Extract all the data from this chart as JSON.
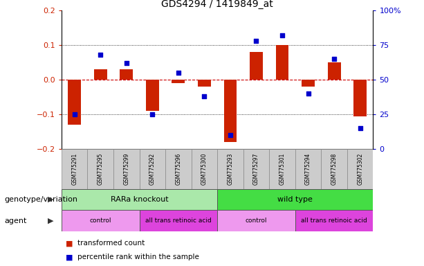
{
  "title": "GDS4294 / 1419849_at",
  "samples": [
    "GSM775291",
    "GSM775295",
    "GSM775299",
    "GSM775292",
    "GSM775296",
    "GSM775300",
    "GSM775293",
    "GSM775297",
    "GSM775301",
    "GSM775294",
    "GSM775298",
    "GSM775302"
  ],
  "bar_values": [
    -0.13,
    0.03,
    0.03,
    -0.09,
    -0.01,
    -0.02,
    -0.18,
    0.08,
    0.1,
    -0.02,
    0.05,
    -0.105
  ],
  "dot_values": [
    25,
    68,
    62,
    25,
    55,
    38,
    10,
    78,
    82,
    40,
    65,
    15
  ],
  "ylim_left": [
    -0.2,
    0.2
  ],
  "ylim_right": [
    0,
    100
  ],
  "yticks_left": [
    -0.2,
    -0.1,
    0.0,
    0.1,
    0.2
  ],
  "yticks_right": [
    0,
    25,
    50,
    75,
    100
  ],
  "bar_color": "#cc2200",
  "dot_color": "#0000cc",
  "zero_line_color": "#cc0000",
  "grid_color": "#000000",
  "genotype_groups": [
    {
      "label": "RARa knockout",
      "start": 0,
      "end": 6,
      "color": "#aae8aa"
    },
    {
      "label": "wild type",
      "start": 6,
      "end": 12,
      "color": "#44dd44"
    }
  ],
  "agent_groups": [
    {
      "label": "control",
      "start": 0,
      "end": 3,
      "color": "#ee99ee"
    },
    {
      "label": "all trans retinoic acid",
      "start": 3,
      "end": 6,
      "color": "#dd44dd"
    },
    {
      "label": "control",
      "start": 6,
      "end": 9,
      "color": "#ee99ee"
    },
    {
      "label": "all trans retinoic acid",
      "start": 9,
      "end": 12,
      "color": "#dd44dd"
    }
  ],
  "legend_items": [
    {
      "label": "transformed count",
      "color": "#cc2200"
    },
    {
      "label": "percentile rank within the sample",
      "color": "#0000cc"
    }
  ],
  "xlabel_row1": "genotype/variation",
  "xlabel_row2": "agent",
  "background_color": "#ffffff",
  "plot_bg": "#ffffff",
  "sample_bg": "#cccccc"
}
